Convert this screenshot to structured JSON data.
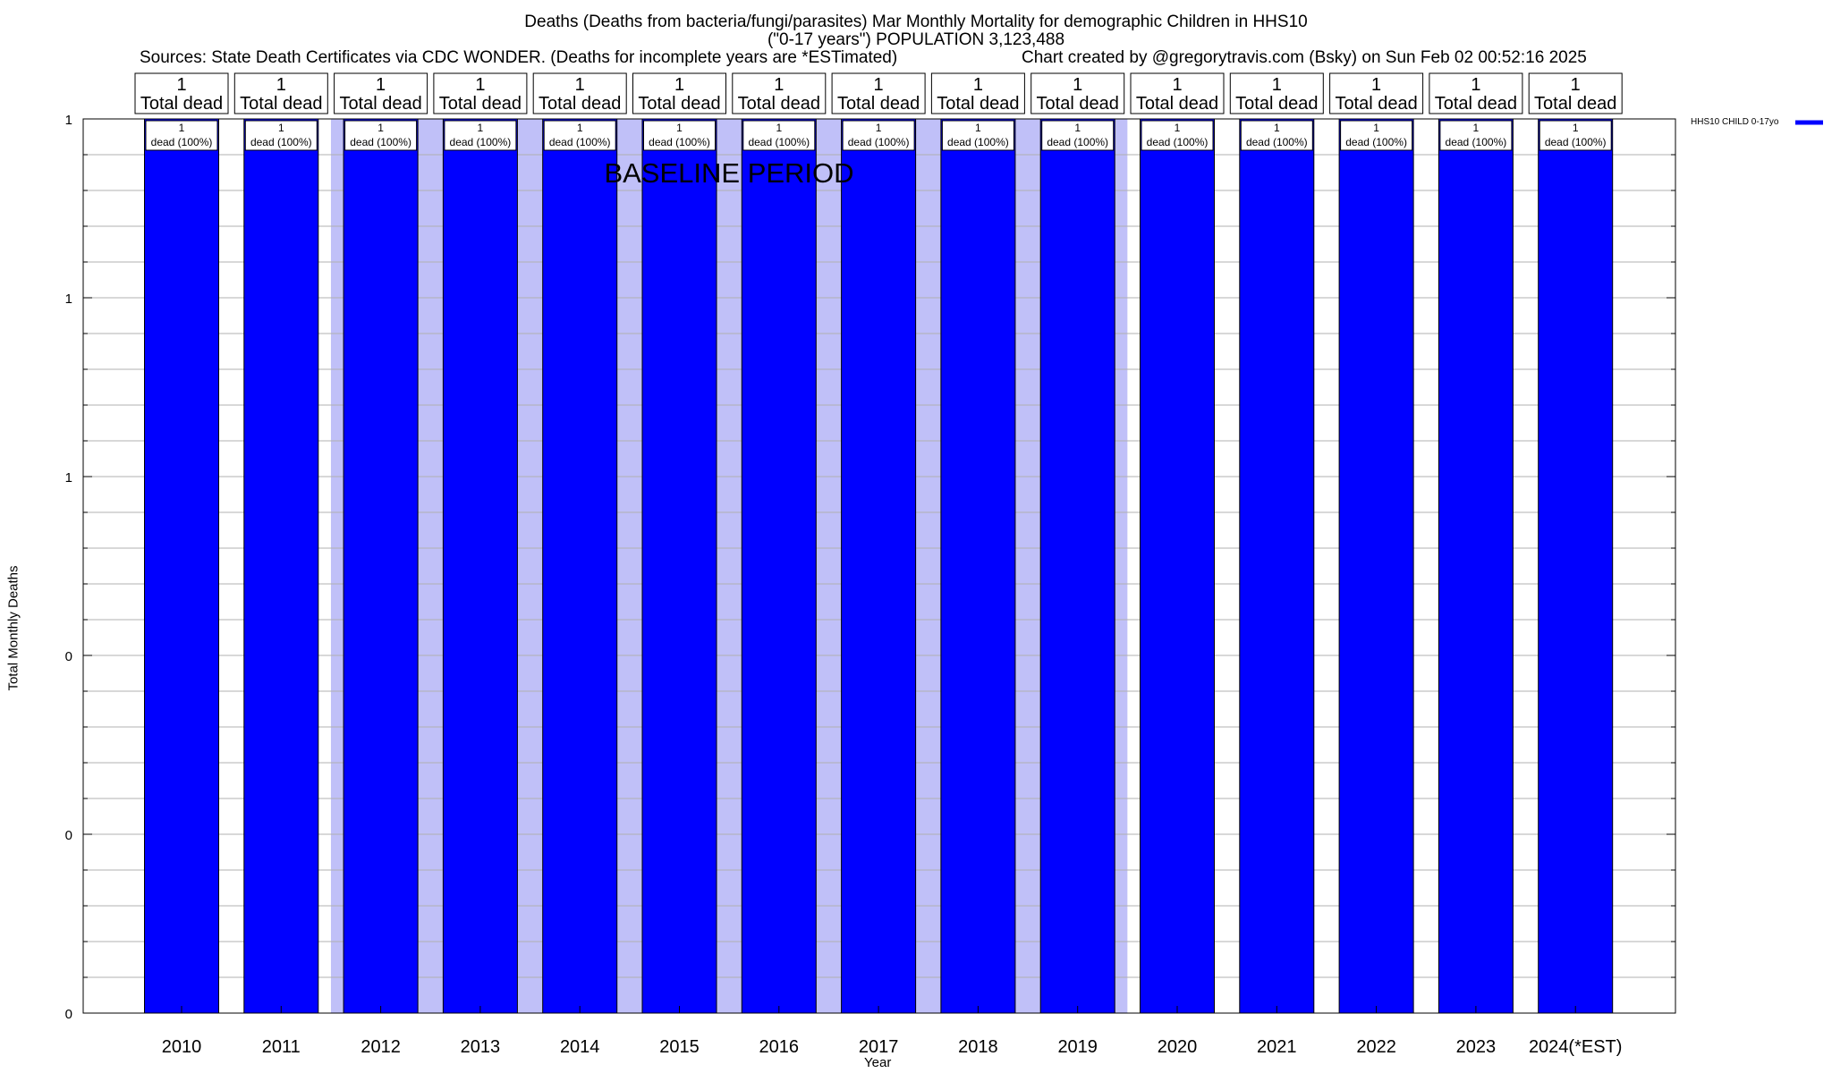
{
  "chart_data": {
    "type": "bar",
    "title": "Deaths (Deaths from bacteria/fungi/parasites) Mar Monthly Mortality for demographic Children in HHS10",
    "subtitle": "(\"0-17 years\") POPULATION 3,123,488",
    "sources": "Sources: State Death Certificates via CDC WONDER. (Deaths for incomplete years are *ESTimated)",
    "credit": "Chart created by @gregorytravis.com (Bsky) on Sun Feb 02 00:52:16 2025",
    "xlabel": "Year",
    "ylabel": "Total Monthly Deaths",
    "ylim": [
      0,
      1
    ],
    "ytick_labels": [
      "0",
      "0",
      "0",
      "1",
      "1",
      "1"
    ],
    "categories": [
      "2010",
      "2011",
      "2012",
      "2013",
      "2014",
      "2015",
      "2016",
      "2017",
      "2018",
      "2019",
      "2020",
      "2021",
      "2022",
      "2023",
      "2024(*EST)"
    ],
    "series": [
      {
        "name": "HHS10 CHILD 0-17yo",
        "color": "#0000ff",
        "values": [
          1,
          1,
          1,
          1,
          1,
          1,
          1,
          1,
          1,
          1,
          1,
          1,
          1,
          1,
          1
        ]
      }
    ],
    "top_labels": [
      {
        "count": "1",
        "text": "Total dead"
      },
      {
        "count": "1",
        "text": "Total dead"
      },
      {
        "count": "1",
        "text": "Total dead"
      },
      {
        "count": "1",
        "text": "Total dead"
      },
      {
        "count": "1",
        "text": "Total dead"
      },
      {
        "count": "1",
        "text": "Total dead"
      },
      {
        "count": "1",
        "text": "Total dead"
      },
      {
        "count": "1",
        "text": "Total dead"
      },
      {
        "count": "1",
        "text": "Total dead"
      },
      {
        "count": "1",
        "text": "Total dead"
      },
      {
        "count": "1",
        "text": "Total dead"
      },
      {
        "count": "1",
        "text": "Total dead"
      },
      {
        "count": "1",
        "text": "Total dead"
      },
      {
        "count": "1",
        "text": "Total dead"
      },
      {
        "count": "1",
        "text": "Total dead"
      }
    ],
    "bar_labels": [
      {
        "count": "1",
        "text": "dead (100%)"
      },
      {
        "count": "1",
        "text": "dead (100%)"
      },
      {
        "count": "1",
        "text": "dead (100%)"
      },
      {
        "count": "1",
        "text": "dead (100%)"
      },
      {
        "count": "1",
        "text": "dead (100%)"
      },
      {
        "count": "1",
        "text": "dead (100%)"
      },
      {
        "count": "1",
        "text": "dead (100%)"
      },
      {
        "count": "1",
        "text": "dead (100%)"
      },
      {
        "count": "1",
        "text": "dead (100%)"
      },
      {
        "count": "1",
        "text": "dead (100%)"
      },
      {
        "count": "1",
        "text": "dead (100%)"
      },
      {
        "count": "1",
        "text": "dead (100%)"
      },
      {
        "count": "1",
        "text": "dead (100%)"
      },
      {
        "count": "1",
        "text": "dead (100%)"
      },
      {
        "count": "1",
        "text": "dead (100%)"
      }
    ],
    "baseline": {
      "label": "BASELINE PERIOD",
      "start_year": "2012",
      "end_year": "2019",
      "color": "#c0c0f8"
    },
    "legend_position": "top-right",
    "grid": true
  }
}
